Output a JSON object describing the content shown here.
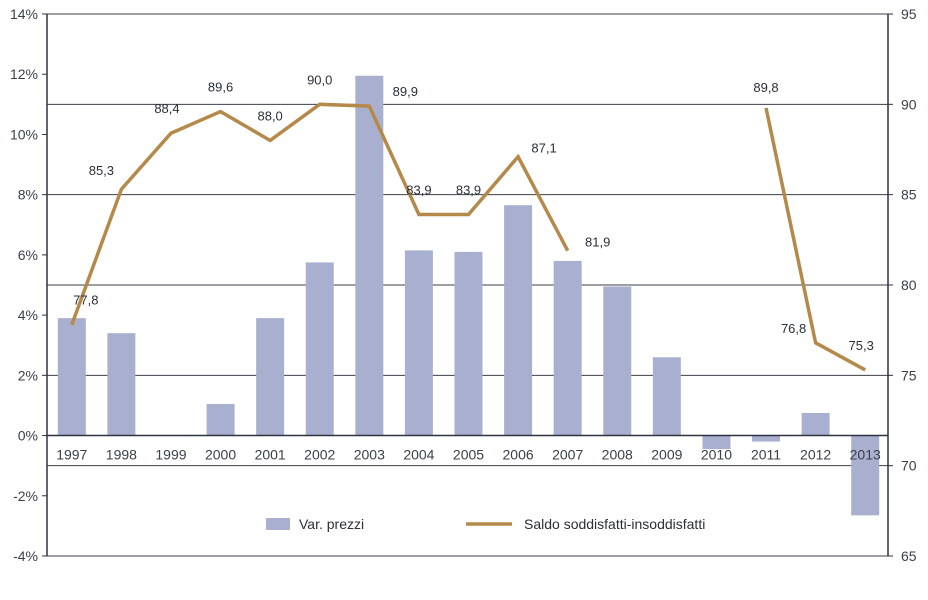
{
  "chart_data": {
    "type": "bar+line",
    "categories": [
      "1997",
      "1998",
      "1999",
      "2000",
      "2001",
      "2002",
      "2003",
      "2004",
      "2005",
      "2006",
      "2007",
      "2008",
      "2009",
      "2010",
      "2011",
      "2012",
      "2013"
    ],
    "series": [
      {
        "name": "Var. prezzi",
        "type": "bar",
        "axis": "left",
        "values": [
          3.9,
          3.4,
          0.0,
          1.05,
          3.9,
          5.75,
          11.95,
          6.15,
          6.1,
          7.65,
          5.8,
          4.95,
          2.6,
          -0.45,
          -0.2,
          0.75,
          -2.65
        ],
        "color": "#a9b0cf"
      },
      {
        "name": "Saldo soddisfatti-insoddisfatti",
        "type": "line",
        "axis": "right",
        "values": [
          77.8,
          85.3,
          88.4,
          89.6,
          88.0,
          90.0,
          89.9,
          83.9,
          83.9,
          87.1,
          81.9,
          null,
          null,
          null,
          89.8,
          76.8,
          75.3
        ],
        "labels": [
          "77,8",
          "85,3",
          "88,4",
          "89,6",
          "88,0",
          "90,0",
          "89,9",
          "83,9",
          "83,9",
          "87,1",
          "81,9",
          "",
          "",
          "",
          "89,8",
          "76,8",
          "75,3"
        ],
        "color": "#b5894a"
      }
    ],
    "y_left": {
      "min": -4,
      "max": 14,
      "step": 2,
      "ticks": [
        "-4%",
        "-2%",
        "0%",
        "2%",
        "4%",
        "6%",
        "8%",
        "10%",
        "12%",
        "14%"
      ]
    },
    "y_right": {
      "min": 65,
      "max": 95,
      "step": 5,
      "ticks": [
        "65",
        "70",
        "75",
        "80",
        "85",
        "90",
        "95"
      ]
    },
    "grid": true,
    "legend_position": "bottom-center",
    "legend": [
      "Var. prezzi",
      "Saldo soddisfatti-insoddisfatti"
    ]
  }
}
